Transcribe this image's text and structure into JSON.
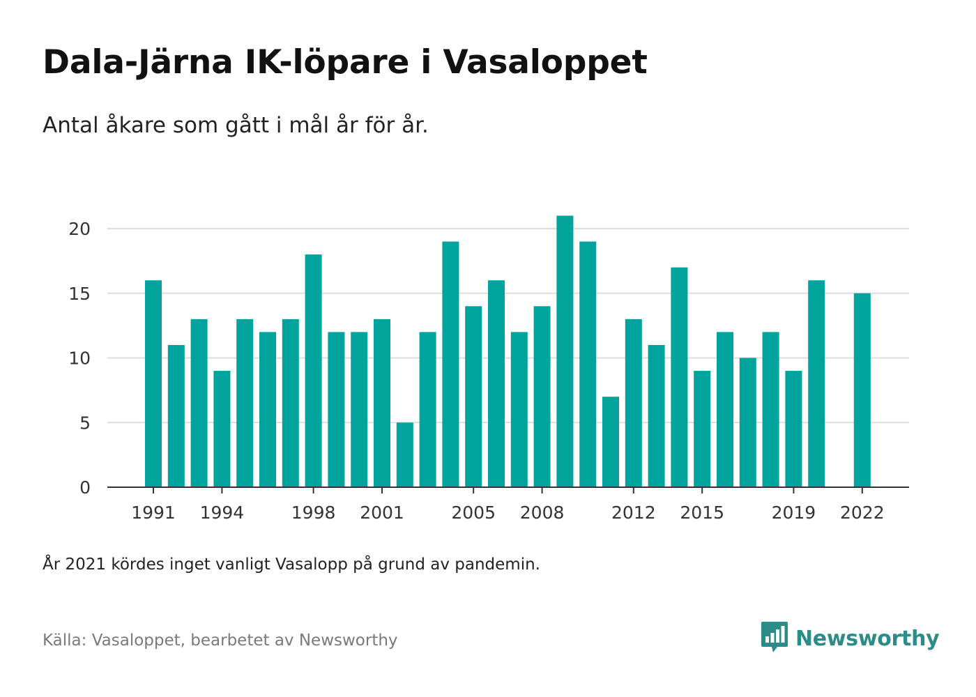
{
  "header": {
    "title": "Dala-Järna IK-löpare i Vasaloppet",
    "subtitle": "Antal åkare som gått i mål år för år."
  },
  "footer": {
    "note": "År 2021 kördes inget vanligt Vasalopp på grund av pandemin.",
    "source": "Källa: Vasaloppet, bearbetet av Newsworthy",
    "brand": "Newsworthy",
    "brand_icon": "bar-chart-speech-bubble-icon"
  },
  "colors": {
    "bar": "#00a49d",
    "brand": "#2b8c88",
    "grid": "#dddddd",
    "axis": "#333333"
  },
  "chart_data": {
    "type": "bar",
    "title": "Dala-Järna IK-löpare i Vasaloppet",
    "subtitle": "Antal åkare som gått i mål år för år.",
    "xlabel": "",
    "ylabel": "",
    "x": [
      1991,
      1992,
      1993,
      1994,
      1995,
      1996,
      1997,
      1998,
      1999,
      2000,
      2001,
      2002,
      2003,
      2004,
      2005,
      2006,
      2007,
      2008,
      2009,
      2010,
      2011,
      2012,
      2013,
      2014,
      2015,
      2016,
      2017,
      2018,
      2019,
      2020,
      2021,
      2022
    ],
    "values": [
      16,
      11,
      13,
      9,
      13,
      12,
      13,
      18,
      12,
      12,
      13,
      5,
      12,
      19,
      14,
      16,
      12,
      14,
      21,
      19,
      7,
      13,
      11,
      17,
      9,
      12,
      10,
      12,
      9,
      16,
      null,
      15
    ],
    "x_tick_labels": [
      "1991",
      "1994",
      "1998",
      "2001",
      "2005",
      "2008",
      "2012",
      "2015",
      "2019",
      "2022"
    ],
    "y_ticks": [
      0,
      5,
      10,
      15,
      20
    ],
    "ylim": [
      0,
      21
    ],
    "grid": "horizontal",
    "legend": "none"
  }
}
